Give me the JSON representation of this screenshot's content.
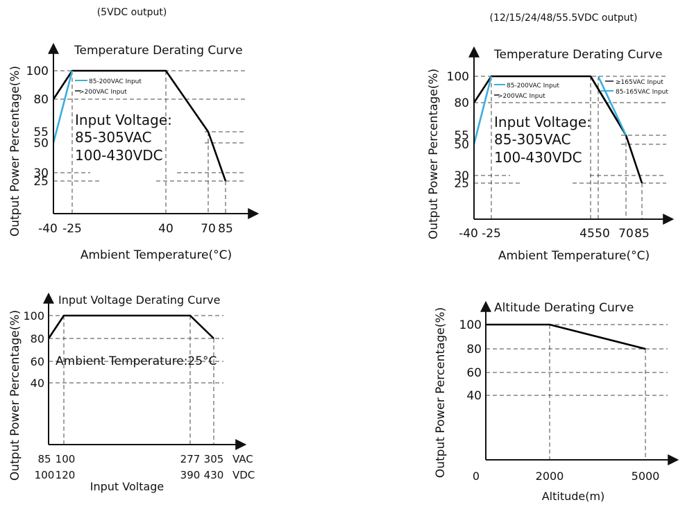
{
  "chart_data": [
    {
      "type": "line",
      "caption": "(5VDC output)",
      "title": "Temperature Derating Curve",
      "xlabel": "Ambient Temperature(°C)",
      "ylabel": "Output Power Percentage(%)",
      "xticks": [
        "-40",
        "-25",
        "40",
        "70",
        "85"
      ],
      "yticks": [
        "100",
        "80",
        "55",
        "50",
        "30",
        "25"
      ],
      "note_lines": [
        "Input Voltage:",
        "85-305VAC",
        "100-430VDC"
      ],
      "series": [
        {
          "name": "85-200VAC Input",
          "color": "#000000",
          "x": [
            -40,
            -25,
            40,
            70,
            85
          ],
          "y": [
            80,
            100,
            100,
            55,
            25
          ]
        },
        {
          "name": ">200VAC Input",
          "color": "#3aaedc",
          "x": [
            -40,
            -25
          ],
          "y": [
            50,
            100
          ]
        }
      ],
      "colors": {
        "accent": "#3aaedc",
        "grid": "#444444"
      }
    },
    {
      "type": "line",
      "caption": "(12/15/24/48/55.5VDC output)",
      "title": "Temperature Derating Curve",
      "xlabel": "Ambient Temperature(°C)",
      "ylabel": "Output Power Percentage(%)",
      "xticks": [
        "-40",
        "-25",
        "45",
        "50",
        "70",
        "85"
      ],
      "yticks": [
        "100",
        "80",
        "55",
        "50",
        "30",
        "25"
      ],
      "note_lines": [
        "Input Voltage:",
        "85-305VAC",
        "100-430VDC"
      ],
      "series": [
        {
          "name": "85-200VAC Input",
          "color": "#000000",
          "x": [
            -40,
            -25,
            45,
            70,
            85
          ],
          "y": [
            80,
            100,
            100,
            55,
            25
          ]
        },
        {
          "name": ">200VAC Input",
          "color": "#3aaedc",
          "x": [
            -40,
            -25
          ],
          "y": [
            50,
            100
          ]
        },
        {
          "name": "≥165VAC Input",
          "color": "#000000",
          "x": [
            45,
            70
          ],
          "y": [
            100,
            55
          ]
        },
        {
          "name": "85-165VAC Input",
          "color": "#3aaedc",
          "x": [
            50,
            70
          ],
          "y": [
            100,
            55
          ]
        }
      ],
      "colors": {
        "accent": "#3aaedc",
        "grid": "#444444"
      }
    },
    {
      "type": "line",
      "title": "Input Voltage Derating Curve",
      "xlabel": "Input Voltage",
      "ylabel": "Output Power Percentage(%)",
      "xticks_vac": [
        "85",
        "100",
        "277",
        "305"
      ],
      "xticks_vdc": [
        "100",
        "120",
        "390",
        "430"
      ],
      "unit_vac": "VAC",
      "unit_vdc": "VDC",
      "yticks": [
        "100",
        "80",
        "60",
        "40"
      ],
      "note": "Ambient Temperature:25°C",
      "series": [
        {
          "x": [
            85,
            100,
            277,
            305
          ],
          "y": [
            80,
            100,
            100,
            80
          ],
          "color": "#000000"
        }
      ]
    },
    {
      "type": "line",
      "title": "Altitude Derating Curve",
      "xlabel": "Altitude(m)",
      "ylabel": "Output Power Percentage(%)",
      "xticks": [
        "0",
        "2000",
        "5000"
      ],
      "yticks": [
        "100",
        "80",
        "60",
        "40"
      ],
      "series": [
        {
          "x": [
            0,
            2000,
            5000
          ],
          "y": [
            100,
            100,
            80
          ],
          "color": "#000000"
        }
      ]
    }
  ]
}
